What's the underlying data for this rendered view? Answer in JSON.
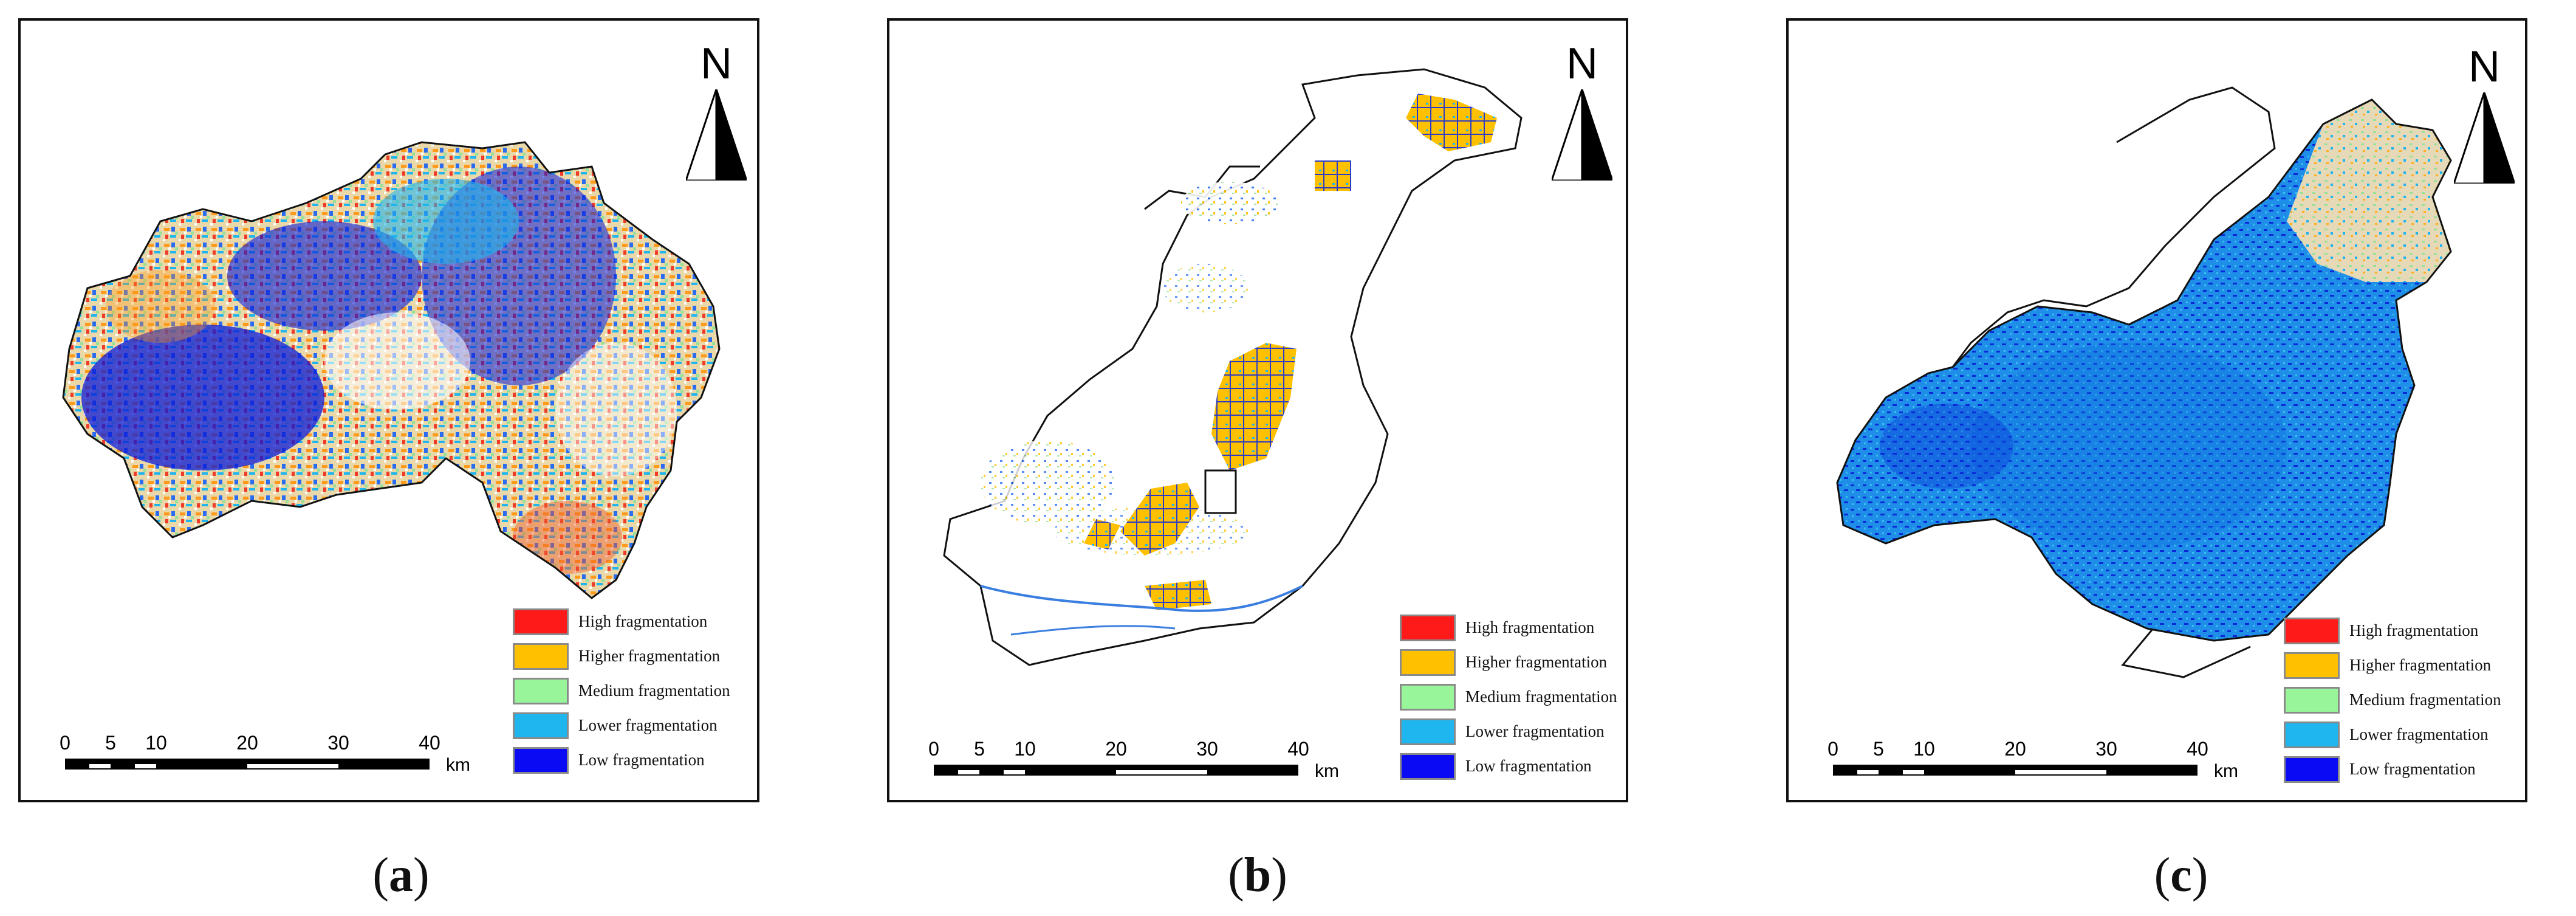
{
  "panels": [
    {
      "id": "a",
      "caption_letter": "a",
      "north_label": "N",
      "scale_unit": "km",
      "scale_ticks": [
        "0",
        "5",
        "10",
        "20",
        "30",
        "40"
      ],
      "legend": [
        {
          "label": "High fragmentation",
          "color": "#ff1a1a"
        },
        {
          "label": "Higher fragmentation",
          "color": "#ffc000"
        },
        {
          "label": "Medium fragmentation",
          "color": "#99f599"
        },
        {
          "label": "Lower fragmentation",
          "color": "#1fb5ee"
        },
        {
          "label": "Low fragmentation",
          "color": "#0a0af5"
        }
      ]
    },
    {
      "id": "b",
      "caption_letter": "b",
      "north_label": "N",
      "scale_unit": "km",
      "scale_ticks": [
        "0",
        "5",
        "10",
        "20",
        "30",
        "40"
      ],
      "legend": [
        {
          "label": "High fragmentation",
          "color": "#ff1a1a"
        },
        {
          "label": "Higher fragmentation",
          "color": "#ffc000"
        },
        {
          "label": "Medium fragmentation",
          "color": "#99f599"
        },
        {
          "label": "Lower fragmentation",
          "color": "#1fb5ee"
        },
        {
          "label": "Low fragmentation",
          "color": "#0a0af5"
        }
      ]
    },
    {
      "id": "c",
      "caption_letter": "c",
      "north_label": "N",
      "scale_unit": "km",
      "scale_ticks": [
        "0",
        "5",
        "10",
        "20",
        "30",
        "40"
      ],
      "legend": [
        {
          "label": "High fragmentation",
          "color": "#ff1a1a"
        },
        {
          "label": "Higher fragmentation",
          "color": "#ffc000"
        },
        {
          "label": "Medium fragmentation",
          "color": "#99f599"
        },
        {
          "label": "Lower fragmentation",
          "color": "#1fb5ee"
        },
        {
          "label": "Low fragmentation",
          "color": "#0a0af5"
        }
      ]
    }
  ]
}
